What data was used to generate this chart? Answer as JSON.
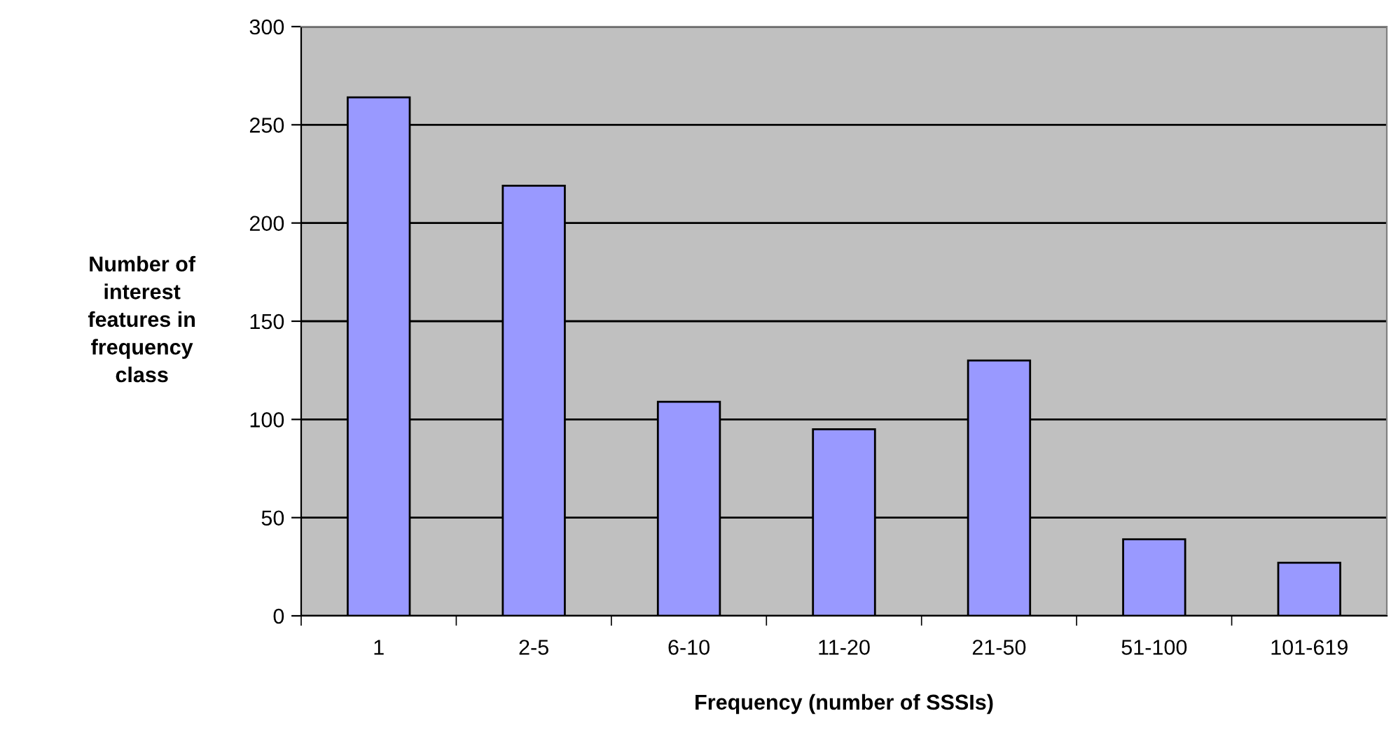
{
  "chart_data": {
    "type": "bar",
    "xlabel": "Frequency (number of SSSIs)",
    "ylabel": "Number of\ninterest\nfeatures in\nfrequency\nclass",
    "categories": [
      "1",
      "2-5",
      "6-10",
      "11-20",
      "21-50",
      "51-100",
      "101-619"
    ],
    "values": [
      264,
      219,
      109,
      95,
      130,
      39,
      27
    ],
    "color": "#9999ff",
    "ylim": [
      0,
      300
    ],
    "yticks": [
      0,
      50,
      100,
      150,
      200,
      250,
      300
    ],
    "grid": "y",
    "legend": false
  }
}
